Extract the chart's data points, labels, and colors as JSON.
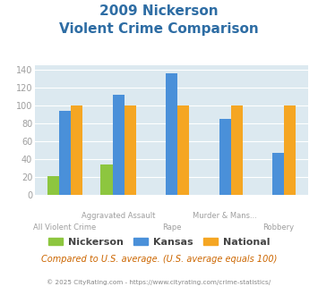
{
  "title_line1": "2009 Nickerson",
  "title_line2": "Violent Crime Comparison",
  "categories": [
    "All Violent Crime",
    "Aggravated Assault",
    "Rape",
    "Murder & Mans...",
    "Robbery"
  ],
  "series": {
    "Nickerson": [
      21,
      34,
      0,
      0,
      0
    ],
    "Kansas": [
      94,
      112,
      136,
      85,
      47
    ],
    "National": [
      100,
      100,
      100,
      100,
      100
    ]
  },
  "colors": {
    "Nickerson": "#8dc63f",
    "Kansas": "#4a90d9",
    "National": "#f5a623"
  },
  "ylim": [
    0,
    145
  ],
  "yticks": [
    0,
    20,
    40,
    60,
    80,
    100,
    120,
    140
  ],
  "bar_width": 0.22,
  "plot_bg": "#dce9f0",
  "fig_bg": "#ffffff",
  "title_color": "#2e6da4",
  "axis_label_color": "#9e9e9e",
  "footnote": "Compared to U.S. average. (U.S. average equals 100)",
  "footnote2": "© 2025 CityRating.com - https://www.cityrating.com/crime-statistics/",
  "footnote_color": "#cc6600",
  "footnote2_color": "#888888"
}
